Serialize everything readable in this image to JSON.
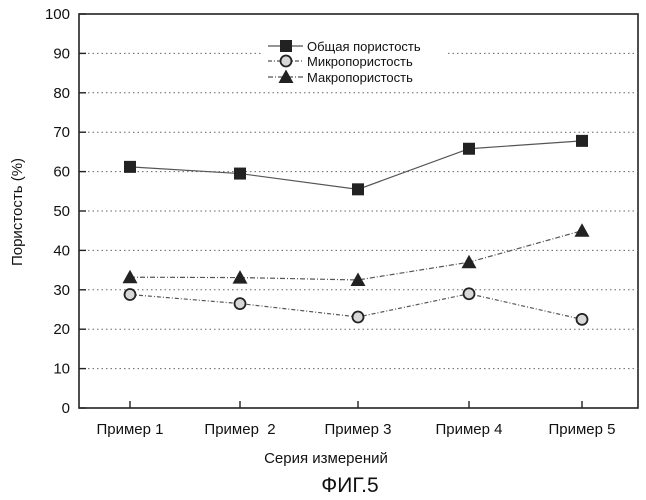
{
  "chart_data": {
    "type": "line",
    "categories": [
      "Пример 1",
      "Пример  2",
      "Пример 3",
      "Пример 4",
      "Пример 5"
    ],
    "series": [
      {
        "name": "Общая пористость",
        "marker": "square",
        "values": [
          61.2,
          59.5,
          55.5,
          65.8,
          67.8
        ]
      },
      {
        "name": "Микропористость",
        "marker": "circle",
        "values": [
          28.8,
          26.5,
          23.1,
          29.0,
          22.5
        ]
      },
      {
        "name": "Макропористость",
        "marker": "triangle",
        "values": [
          33.2,
          33.1,
          32.5,
          37.0,
          45.0
        ]
      }
    ],
    "xlabel": "Серия измерений",
    "ylabel": "Пористость (%)",
    "ylim": [
      0,
      100
    ],
    "yticks": [
      0,
      10,
      20,
      30,
      40,
      50,
      60,
      70,
      80,
      90,
      100
    ],
    "grid": "horizontal-dotted",
    "legend": "top-center",
    "colors": {
      "line": "#555555",
      "marker": "#222222",
      "axis": "#222222",
      "grid": "#666666"
    }
  },
  "figure_label": "ФИГ.5"
}
